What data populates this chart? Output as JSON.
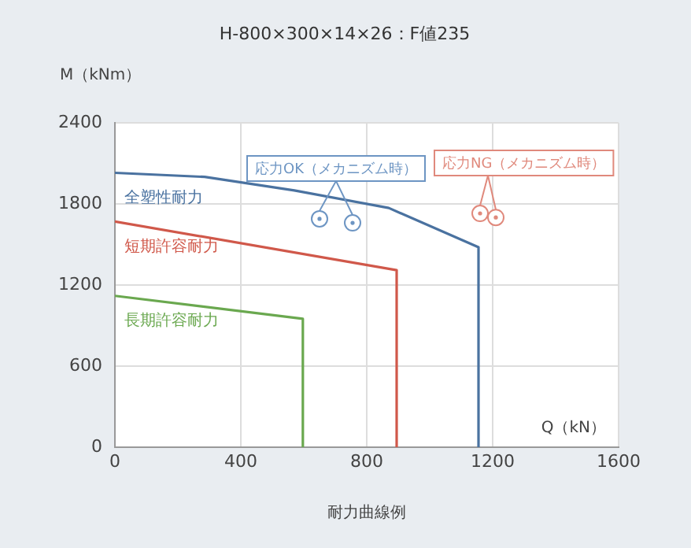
{
  "chart_data": {
    "type": "line",
    "title": "H-800×300×14×26：F値235",
    "xlabel": "Q（kN）",
    "ylabel": "M（kNm）",
    "annotations": [
      "耐力曲線例"
    ],
    "xlim": [
      0,
      1600
    ],
    "xticks": [
      0,
      400,
      800,
      1200,
      1600
    ],
    "ylim": [
      0,
      2400
    ],
    "yticks": [
      0,
      600,
      1200,
      1800,
      2400
    ],
    "grid": true,
    "legend": false,
    "marker": "none",
    "line_style": "solid",
    "series": [
      {
        "name": "全塑性耐力",
        "color": "#4a72a0",
        "x": [
          0,
          285,
          570,
          870,
          1155,
          1155
        ],
        "values": [
          2030,
          2000,
          1900,
          1770,
          1480,
          0
        ]
      },
      {
        "name": "短期許容耐力",
        "color": "#d0584a",
        "x": [
          0,
          895,
          895
        ],
        "values": [
          1670,
          1310,
          0
        ]
      },
      {
        "name": "長期許容耐力",
        "color": "#6aa84f",
        "x": [
          0,
          597,
          597
        ],
        "values": [
          1120,
          950,
          0
        ]
      },
      {
        "name": "応力OK（メカニズム時）",
        "type": "scatter",
        "marker": "circle",
        "color": "#6d95c3",
        "x": [
          650,
          755
        ],
        "values": [
          1690,
          1660
        ]
      },
      {
        "name": "応力NG（メカニズム時）",
        "type": "scatter",
        "marker": "circle",
        "color": "#e0897c",
        "x": [
          1160,
          1210
        ],
        "values": [
          1730,
          1700
        ]
      }
    ]
  }
}
